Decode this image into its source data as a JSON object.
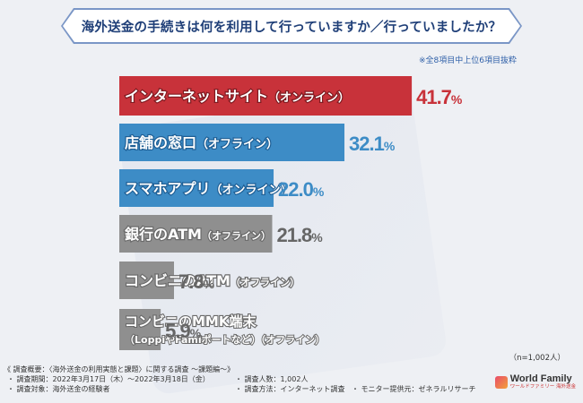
{
  "title": "海外送金の手続きは何を利用して行っていますか／行っていましたか？",
  "note": "※全8項目中上位6項目抜粋",
  "sample_size": "（n=1,002人）",
  "chart_data": {
    "type": "bar",
    "orientation": "horizontal",
    "unit": "%",
    "categories": [
      "インターネットサイト（オンライン）",
      "店舗の窓口（オフライン）",
      "スマホアプリ（オンライン）",
      "銀行のATM（オフライン）",
      "コンビニのATM（オフライン）",
      "コンビニのMMK端末（LoppiやFamiポートなど）（オフライン）"
    ],
    "label_lines": [
      [
        "インターネットサイト",
        "（オンライン）"
      ],
      [
        "店舗の窓口",
        "（オフライン）"
      ],
      [
        "スマホアプリ",
        "（オンライン）"
      ],
      [
        "銀行のATM",
        "（オフライン）"
      ],
      [
        "コンビニのATM",
        "（オフライン）"
      ],
      [
        "コンビニのMMK端末",
        "（LoppiやFamiポートなど）（オフライン）"
      ]
    ],
    "values": [
      41.7,
      32.1,
      22.0,
      21.8,
      7.8,
      5.9
    ],
    "value_labels": [
      "41.7%",
      "32.1%",
      "22.0%",
      "21.8%",
      "7.8%",
      "5.9%"
    ],
    "colors": [
      "#c8323a",
      "#3d8cc6",
      "#3d8cc6",
      "#8f8f8f",
      "#8f8f8f",
      "#8f8f8f"
    ],
    "value_colors": [
      "#c8323a",
      "#3d8cc6",
      "#3d8cc6",
      "#666666",
      "#666666",
      "#666666"
    ],
    "xlim": [
      0,
      45
    ]
  },
  "footer": {
    "survey_title": "《 調査概要：〈海外送金の利用実態と課題〉に関する調査 ～課題編～》",
    "period": "・ 調査期間：2022年3月17日（木）～2022年3月18日（金）",
    "target": "・ 調査対象：海外送金の経験者",
    "respondents": "・ 調査人数：1,002人",
    "method": "・ 調査方法：インターネット調査",
    "monitor": "・ モニター提供元：ゼネラルリサーチ"
  },
  "logo": {
    "name": "World Family",
    "sub": "ワールドファミリー 海外送金"
  }
}
